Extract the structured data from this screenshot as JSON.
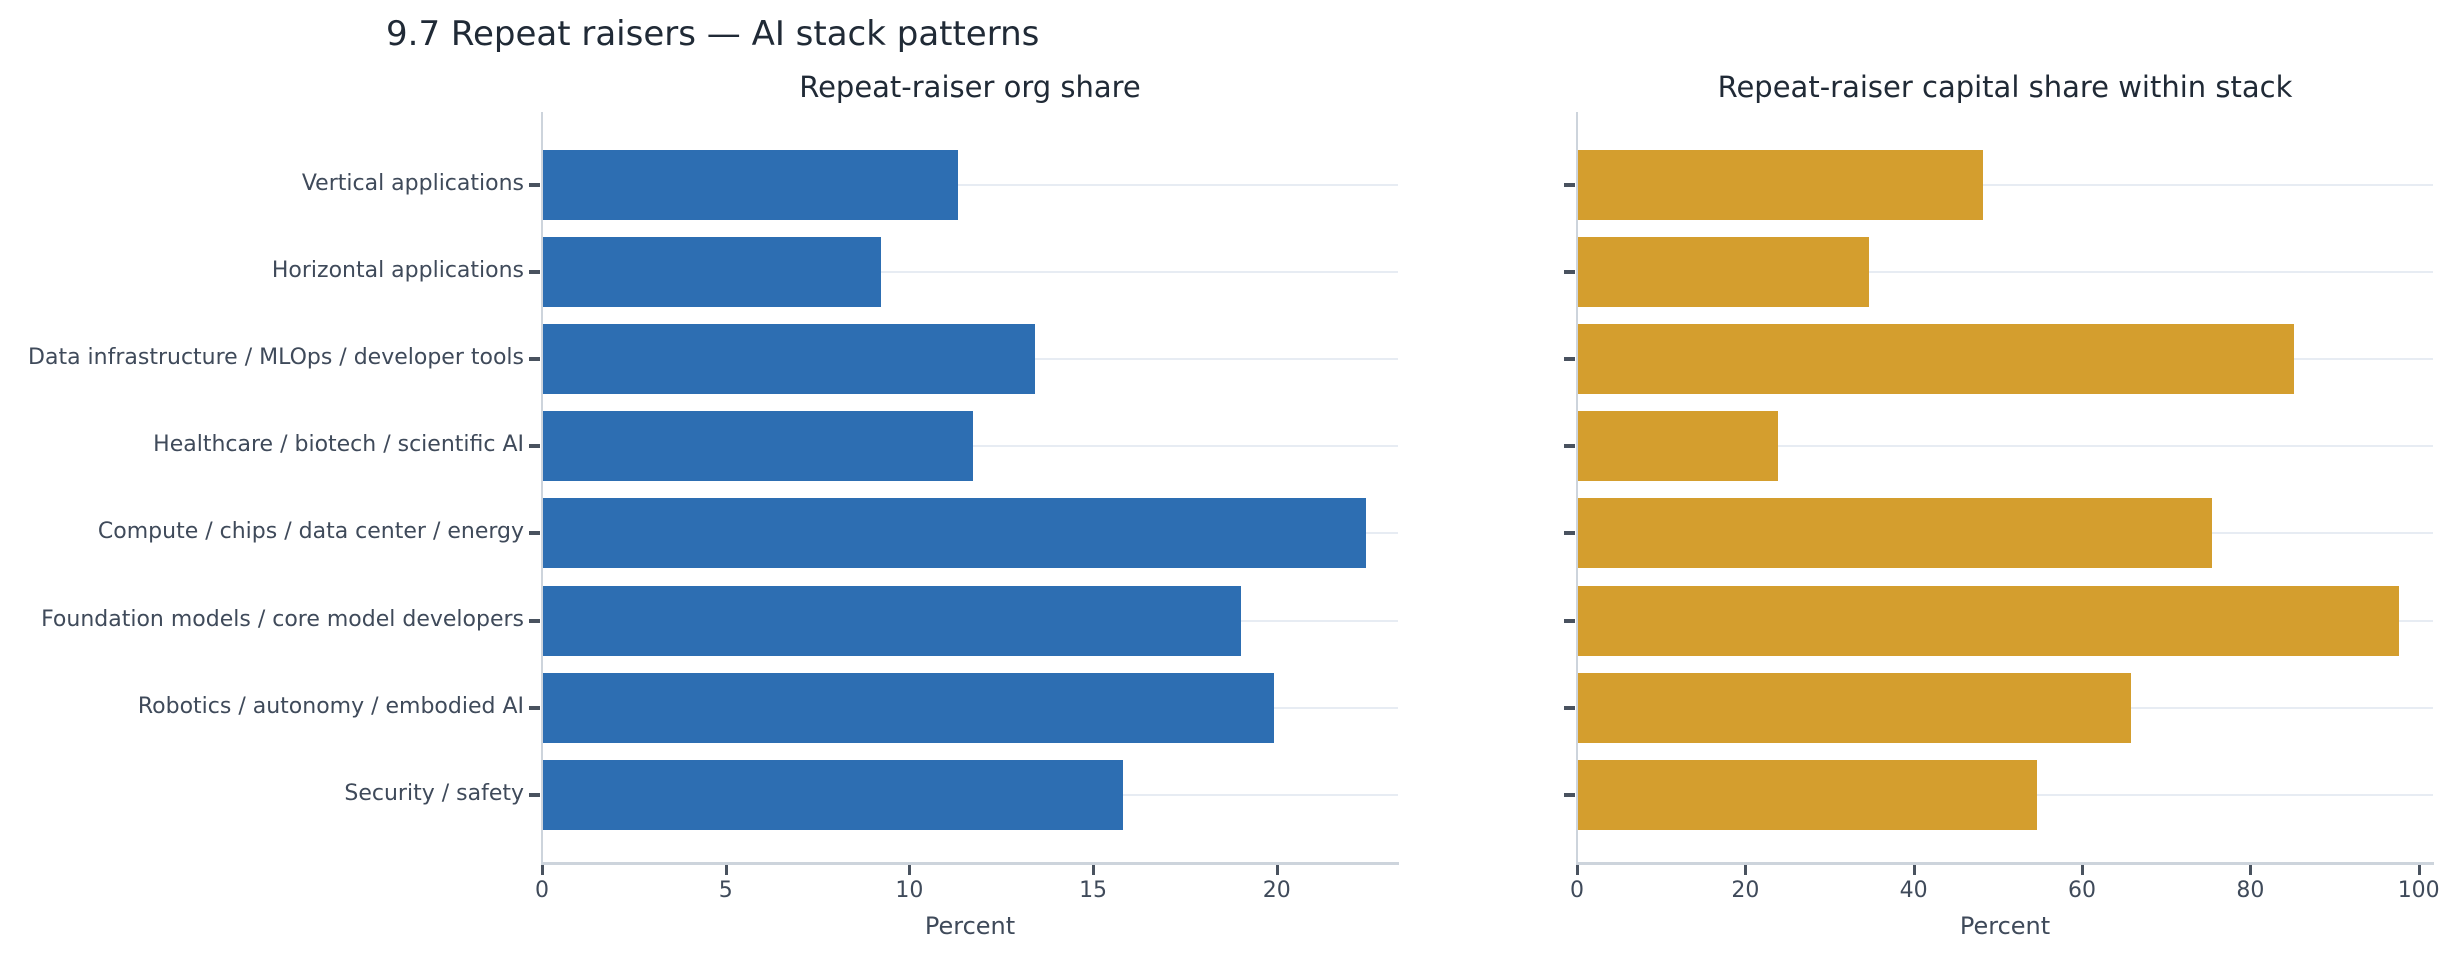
{
  "figure": {
    "title": "9.7 Repeat raisers — AI stack patterns"
  },
  "colors": {
    "bar_blue": "#2d6eb2",
    "bar_orange": "#d49e2e",
    "title_text": "#202a36",
    "label_text": "#3f4a5a",
    "gridline": "#e7ecf3",
    "axis_spine": "#cdd4dc",
    "tick_mark": "#49525f"
  },
  "categories": [
    "Vertical applications",
    "Horizontal applications",
    "Data infrastructure / MLOps / developer tools",
    "Healthcare / biotech / scientific AI",
    "Compute / chips / data center / energy",
    "Foundation models / core model developers",
    "Robotics / autonomy / embodied AI",
    "Security / safety"
  ],
  "chart_data": [
    {
      "type": "bar",
      "orientation": "horizontal",
      "title": "Repeat-raiser org share",
      "xlabel": "Percent",
      "categories": [
        "Vertical applications",
        "Horizontal applications",
        "Data infrastructure / MLOps / developer tools",
        "Healthcare / biotech / scientific AI",
        "Compute / chips / data center / energy",
        "Foundation models / core model developers",
        "Robotics / autonomy / embodied AI",
        "Security / safety"
      ],
      "values": [
        11.3,
        9.2,
        13.4,
        11.7,
        22.4,
        19.0,
        19.9,
        15.8
      ],
      "xticks": [
        0,
        5,
        10,
        15,
        20
      ],
      "xlim": [
        0,
        23.3
      ],
      "grid": "horizontal",
      "legend": "none",
      "bar_color": "#2d6eb2",
      "show_category_labels": true
    },
    {
      "type": "bar",
      "orientation": "horizontal",
      "title": "Repeat-raiser capital share within stack",
      "xlabel": "Percent",
      "categories": [
        "Vertical applications",
        "Horizontal applications",
        "Data infrastructure / MLOps / developer tools",
        "Healthcare / biotech / scientific AI",
        "Compute / chips / data center / energy",
        "Foundation models / core model developers",
        "Robotics / autonomy / embodied AI",
        "Security / safety"
      ],
      "values": [
        48.1,
        34.6,
        85.1,
        23.8,
        75.3,
        97.6,
        65.7,
        54.5
      ],
      "xticks": [
        0,
        20,
        40,
        60,
        80,
        100
      ],
      "xlim": [
        0,
        101.7
      ],
      "grid": "horizontal",
      "legend": "none",
      "bar_color": "#d49e2e",
      "show_category_labels": false
    }
  ]
}
